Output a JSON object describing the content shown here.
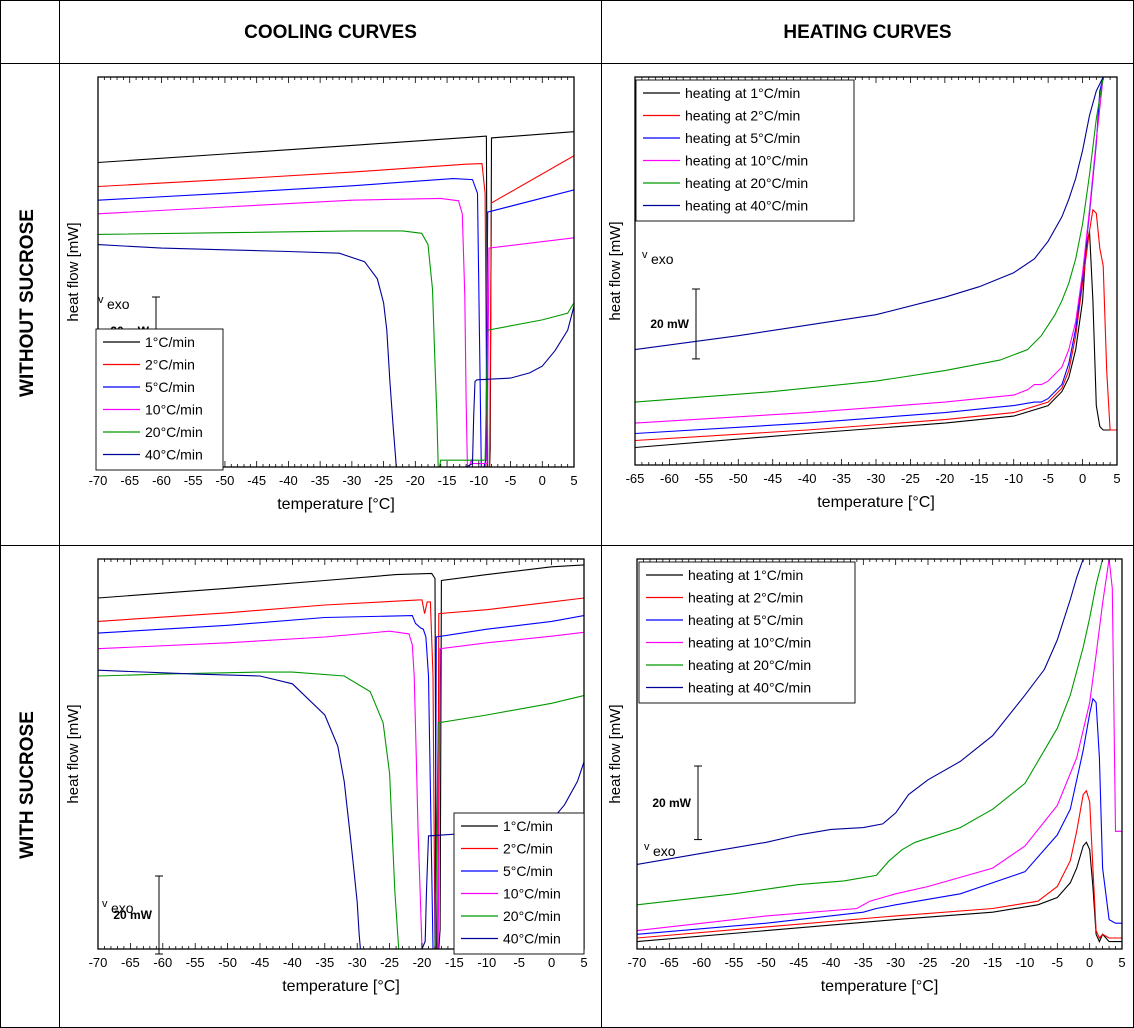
{
  "headers": {
    "cooling": "COOLING CURVES",
    "heating": "HEATING CURVES"
  },
  "rows": {
    "without": "WITHOUT SUCROSE",
    "with": "WITH SUCROSE"
  },
  "colors": [
    "#000000",
    "#ff0000",
    "#0000ff",
    "#ff00ff",
    "#009900",
    "#000099"
  ],
  "chart_data": [
    {
      "id": "cool-without",
      "type": "line",
      "xlabel": "temperature [°C]",
      "ylabel": "heat flow [mW]",
      "xlim": [
        -70,
        5
      ],
      "xticks": [
        -70,
        -65,
        -60,
        -55,
        -50,
        -45,
        -40,
        -35,
        -30,
        -25,
        -20,
        -15,
        -10,
        -5,
        0,
        5
      ],
      "scalebar": {
        "label": "20 mW",
        "mW": 20
      },
      "exo_label": "exo",
      "legend": {
        "position": "bottom-left",
        "entries": [
          "1°C/min",
          "2°C/min",
          "5°C/min",
          "10°C/min",
          "20°C/min",
          "40°C/min"
        ]
      },
      "series": [
        {
          "name": "1°C/min",
          "x": [
            -70,
            -50,
            -30,
            -12,
            -9,
            -8.8,
            -8.6,
            -8.5,
            -8.3,
            -8.2,
            -8.0,
            5
          ],
          "y": [
            79,
            81.5,
            84,
            86.3,
            86.7,
            86.7,
            -10,
            -10,
            -10,
            -5,
            86.2,
            88
          ]
        },
        {
          "name": "2°C/min",
          "x": [
            -70,
            -50,
            -30,
            -12,
            -9.5,
            -9.0,
            -8.7,
            -8.5,
            -8.3,
            -8.0,
            5
          ],
          "y": [
            72,
            74,
            76.2,
            78.5,
            78.7,
            70,
            -10,
            -10,
            -10,
            67.2,
            81
          ]
        },
        {
          "name": "5°C/min",
          "x": [
            -70,
            -50,
            -30,
            -14,
            -11,
            -10.2,
            -9.9,
            -9.6,
            -9.4,
            -9.2,
            -8.9,
            -8.6,
            5
          ],
          "y": [
            68,
            70,
            72.2,
            74.3,
            74,
            70,
            30,
            -10,
            -10,
            -10,
            -8,
            64.5,
            71
          ]
        },
        {
          "name": "10°C/min",
          "x": [
            -70,
            -50,
            -30,
            -16,
            -13.2,
            -12.6,
            -12.2,
            -12.0,
            -11.8,
            -11.5,
            -11.2,
            -11,
            -8.7,
            -8.4,
            5
          ],
          "y": [
            64,
            66,
            68,
            68.5,
            67.8,
            64,
            40,
            10,
            -10,
            -10,
            -8,
            -9,
            -9,
            54,
            57
          ]
        },
        {
          "name": "20°C/min",
          "x": [
            -70,
            -50,
            -30,
            -22,
            -19,
            -18,
            -17.3,
            -16.9,
            -16.6,
            -16.4,
            -16.2,
            -16,
            -13,
            -9,
            -8.6,
            0,
            4,
            5
          ],
          "y": [
            58,
            58.5,
            59,
            59,
            58.3,
            55,
            42,
            20,
            5,
            -10,
            -10,
            -8,
            -8,
            -8,
            30,
            33,
            35,
            38
          ]
        },
        {
          "name": "40°C/min",
          "x": [
            -70,
            -60,
            -50,
            -40,
            -32,
            -28,
            -26,
            -25,
            -24.5,
            -24,
            -23.5,
            -23.2,
            -23,
            -22,
            -20,
            -16,
            -12,
            -11,
            -10.8,
            -10.6,
            -10.3,
            -5,
            -2,
            0,
            2,
            4,
            5
          ],
          "y": [
            55,
            54,
            53.5,
            53,
            52.5,
            50,
            45,
            38,
            30,
            15,
            2,
            -5,
            -10,
            -10,
            -10,
            -10,
            -10,
            -9,
            5,
            15,
            15.5,
            16,
            17.5,
            19.5,
            24,
            30,
            37
          ]
        }
      ]
    },
    {
      "id": "heat-without",
      "type": "line",
      "xlabel": "temperature [°C]",
      "ylabel": "heat flow [mW]",
      "xlim": [
        -65,
        5
      ],
      "xticks": [
        -65,
        -60,
        -55,
        -50,
        -45,
        -40,
        -35,
        -30,
        -25,
        -20,
        -15,
        -10,
        -5,
        0,
        5
      ],
      "scalebar": {
        "label": "20 mW",
        "mW": 20
      },
      "exo_label": "exo",
      "legend": {
        "position": "top-left",
        "entries": [
          "heating at 1°C/min",
          "heating at 2°C/min",
          "heating at 5°C/min",
          "heating at 10°C/min",
          "heating at 20°C/min",
          "heating at 40°C/min"
        ]
      },
      "series": [
        {
          "name": "heating at 1°C/min",
          "x": [
            -65,
            -40,
            -20,
            -10,
            -5,
            -3,
            -2,
            -1,
            0,
            0.5,
            1,
            1.5,
            2,
            2.5,
            3,
            5
          ],
          "y": [
            -2,
            2,
            5,
            7,
            10,
            14,
            18,
            26,
            40,
            55,
            60,
            40,
            10,
            4,
            3,
            3
          ]
        },
        {
          "name": "heating at 2°C/min",
          "x": [
            -65,
            -40,
            -20,
            -10,
            -5,
            -3,
            -2,
            -1,
            0,
            1,
            1.5,
            2,
            2.5,
            3,
            3.5,
            4,
            5
          ],
          "y": [
            0,
            3,
            6,
            8,
            11,
            15,
            20,
            30,
            45,
            60,
            66,
            65,
            55,
            50,
            20,
            3,
            3
          ]
        },
        {
          "name": "heating at 5°C/min",
          "x": [
            -65,
            -40,
            -20,
            -10,
            -7,
            -6,
            -5,
            -3,
            -2,
            -1,
            0,
            1,
            2,
            2.5,
            3
          ],
          "y": [
            2,
            5,
            8,
            10,
            11,
            11,
            12,
            16,
            22,
            32,
            47,
            65,
            85,
            100,
            104
          ]
        },
        {
          "name": "heating at 10°C/min",
          "x": [
            -65,
            -40,
            -20,
            -10,
            -8,
            -7,
            -6,
            -5,
            -3,
            -2,
            -1,
            0,
            1,
            2,
            3
          ],
          "y": [
            5,
            8,
            11,
            13,
            14.5,
            16,
            16,
            17,
            21,
            26,
            34,
            48,
            66,
            86,
            104
          ]
        },
        {
          "name": "heating at 20°C/min",
          "x": [
            -65,
            -45,
            -30,
            -20,
            -12,
            -8,
            -6,
            -4,
            -3,
            -2,
            -1,
            0,
            1,
            2,
            3
          ],
          "y": [
            11,
            14,
            17,
            20,
            23,
            26,
            30,
            36,
            40,
            45,
            52,
            62,
            76,
            92,
            104
          ]
        },
        {
          "name": "heating at 40°C/min",
          "x": [
            -65,
            -50,
            -40,
            -30,
            -20,
            -15,
            -10,
            -7,
            -5,
            -3,
            -2,
            -1,
            0,
            1,
            2,
            3
          ],
          "y": [
            26,
            30,
            33,
            36,
            41,
            44,
            48,
            52,
            57,
            64,
            69,
            75,
            83,
            93,
            100,
            104
          ]
        }
      ]
    },
    {
      "id": "cool-with",
      "type": "line",
      "xlabel": "temperature [°C]",
      "ylabel": "heat flow [mW]",
      "xlim": [
        -70,
        5
      ],
      "xticks": [
        -70,
        -65,
        -60,
        -55,
        -50,
        -45,
        -40,
        -35,
        -30,
        -25,
        -20,
        -15,
        -10,
        -5,
        0,
        5
      ],
      "scalebar": {
        "label": "20 mW",
        "mW": 20
      },
      "exo_label": "exo",
      "legend": {
        "position": "bottom-right",
        "entries": [
          "1°C/min",
          "2°C/min",
          "5°C/min",
          "10°C/min",
          "20°C/min",
          "40°C/min"
        ]
      },
      "series": [
        {
          "name": "1°C/min",
          "x": [
            -70,
            -50,
            -35,
            -24,
            -18.5,
            -18,
            -17.8,
            -17.6,
            -17.4,
            -17.2,
            -17,
            -10,
            0,
            5
          ],
          "y": [
            80,
            82.5,
            84.5,
            86,
            86.3,
            85,
            -10,
            -10,
            -10,
            -5,
            84.5,
            86,
            88,
            88.5
          ]
        },
        {
          "name": "2°C/min",
          "x": [
            -70,
            -50,
            -35,
            -20.5,
            -20,
            -19.6,
            -19.2,
            -18.7,
            -18.3,
            -18.0,
            -17.8,
            -17.6,
            -17.4,
            -10,
            0,
            5
          ],
          "y": [
            74,
            76.2,
            78.2,
            79.5,
            79.5,
            76,
            79,
            79,
            60,
            -10,
            -10,
            -10,
            76,
            77,
            79,
            80
          ]
        },
        {
          "name": "5°C/min",
          "x": [
            -70,
            -50,
            -35,
            -21.5,
            -21,
            -20.2,
            -19.8,
            -19.4,
            -19.0,
            -18.6,
            -18.3,
            -18.0,
            -17.8,
            -10,
            0,
            5
          ],
          "y": [
            71,
            73,
            75,
            75.5,
            73.5,
            72.3,
            72,
            70,
            60,
            20,
            -10,
            -10,
            70,
            72,
            74,
            75.5
          ]
        },
        {
          "name": "10°C/min",
          "x": [
            -70,
            -50,
            -35,
            -25,
            -22,
            -21.5,
            -21.2,
            -20.9,
            -20.6,
            -20.3,
            -20.0,
            -19.8,
            -19.3,
            -17.5,
            -17.2,
            -10,
            0,
            5
          ],
          "y": [
            67,
            68.5,
            70,
            71.5,
            70.8,
            68,
            60,
            40,
            20,
            5,
            -10,
            -10,
            -10,
            -10,
            67,
            68.5,
            70.2,
            71.2
          ]
        },
        {
          "name": "20°C/min",
          "x": [
            -70,
            -60,
            -45,
            -40,
            -32,
            -28,
            -26,
            -25,
            -24.6,
            -24.2,
            -23.8,
            -23.6,
            -23.4,
            -23,
            -20,
            -18,
            -17.8,
            -17.5,
            -10,
            0,
            5
          ],
          "y": [
            60,
            60.5,
            61,
            61,
            60,
            56,
            48,
            35,
            20,
            5,
            -5,
            -10,
            -10,
            -10,
            -10,
            -10,
            8,
            48,
            50,
            53,
            55
          ]
        },
        {
          "name": "40°C/min",
          "x": [
            -70,
            -55,
            -45,
            -40,
            -35,
            -33,
            -32,
            -31,
            -30.5,
            -30,
            -29.7,
            -29.5,
            -29.2,
            -25,
            -20,
            -19.5,
            -19.3,
            -19,
            -10,
            -5,
            -2,
            0,
            2,
            4,
            5
          ],
          "y": [
            61.5,
            60.5,
            60,
            58,
            50,
            42,
            33,
            18,
            10,
            2,
            -6,
            -10,
            -10,
            -10,
            -10,
            -8,
            5,
            19,
            20,
            20.5,
            21.5,
            23,
            27,
            33,
            38
          ]
        }
      ]
    },
    {
      "id": "heat-with",
      "type": "line",
      "xlabel": "temperature [°C]",
      "ylabel": "heat flow [mW]",
      "xlim": [
        -70,
        5
      ],
      "xticks": [
        -70,
        -65,
        -60,
        -55,
        -50,
        -45,
        -40,
        -35,
        -30,
        -25,
        -20,
        -15,
        -10,
        -5,
        0,
        5
      ],
      "scalebar": {
        "label": "20 mW",
        "mW": 20
      },
      "exo_label": "exo",
      "legend": {
        "position": "top-left",
        "entries": [
          "heating at 1°C/min",
          "heating at 2°C/min",
          "heating at 5°C/min",
          "heating at 10°C/min",
          "heating at 20°C/min",
          "heating at 40°C/min"
        ]
      },
      "series": [
        {
          "name": "heating at 1°C/min",
          "x": [
            -70,
            -50,
            -30,
            -15,
            -8,
            -5,
            -3,
            -2,
            -1,
            -0.5,
            0,
            0.5,
            1,
            1.5,
            2,
            3,
            5
          ],
          "y": [
            0,
            3,
            6,
            8,
            10,
            12,
            16,
            20,
            26,
            27,
            25,
            15,
            2,
            0,
            2,
            0,
            0
          ]
        },
        {
          "name": "heating at 2°C/min",
          "x": [
            -70,
            -50,
            -30,
            -15,
            -8,
            -5,
            -3,
            -2,
            -1,
            -0.5,
            0,
            0.5,
            1,
            1.5,
            2,
            3,
            5
          ],
          "y": [
            1,
            4,
            7,
            9,
            11,
            15,
            22,
            30,
            40,
            41,
            38,
            20,
            3,
            1,
            2,
            1,
            1
          ]
        },
        {
          "name": "heating at 5°C/min",
          "x": [
            -70,
            -50,
            -35,
            -33,
            -30,
            -20,
            -10,
            -5,
            -3,
            -1,
            0,
            0.5,
            1,
            1.5,
            2,
            3,
            4,
            5
          ],
          "y": [
            2,
            5,
            8,
            9,
            10,
            13,
            19,
            29,
            36,
            52,
            62,
            66,
            65,
            50,
            20,
            6,
            5,
            5
          ]
        },
        {
          "name": "heating at 10°C/min",
          "x": [
            -70,
            -50,
            -36,
            -34,
            -32,
            -30,
            -25,
            -15,
            -10,
            -5,
            -2,
            0,
            1,
            2,
            3,
            3.5,
            4,
            5
          ],
          "y": [
            3,
            7,
            9,
            11,
            12,
            13,
            15,
            20,
            26,
            37,
            50,
            65,
            78,
            92,
            104,
            96,
            30,
            30
          ]
        },
        {
          "name": "heating at 20°C/min",
          "x": [
            -70,
            -55,
            -45,
            -38,
            -33,
            -31,
            -29,
            -27,
            -20,
            -15,
            -10,
            -5,
            -3,
            -1,
            0,
            1,
            2
          ],
          "y": [
            10,
            13,
            15.5,
            16.5,
            18,
            22,
            25,
            27,
            31,
            36,
            43,
            58,
            67,
            80,
            88,
            97,
            104
          ]
        },
        {
          "name": "heating at 40°C/min",
          "x": [
            -70,
            -60,
            -50,
            -45,
            -40,
            -35,
            -32,
            -30,
            -28,
            -25,
            -20,
            -15,
            -10,
            -7,
            -5,
            -3,
            -2,
            -1
          ],
          "y": [
            21,
            24,
            27,
            29,
            30.5,
            31,
            32,
            35,
            40,
            44,
            49,
            56,
            67,
            74,
            82,
            93,
            99,
            104
          ]
        }
      ]
    }
  ]
}
